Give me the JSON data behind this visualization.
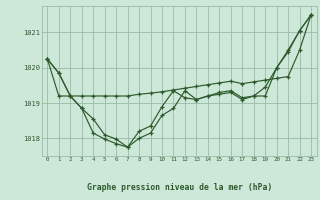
{
  "xlabel": "Graphe pression niveau de la mer (hPa)",
  "background_color": "#cde8d8",
  "plot_bg_color": "#cde8d8",
  "grid_color": "#99bbaa",
  "line_color": "#2d5a2d",
  "text_color": "#2d5a2d",
  "x": [
    0,
    1,
    2,
    3,
    4,
    5,
    6,
    7,
    8,
    9,
    10,
    11,
    12,
    13,
    14,
    15,
    16,
    17,
    18,
    19,
    20,
    21,
    22,
    23
  ],
  "series1": [
    1020.25,
    1019.85,
    1019.2,
    1018.85,
    1018.15,
    1017.98,
    1017.85,
    1017.75,
    1018.0,
    1018.15,
    1018.65,
    1018.85,
    1019.35,
    1019.1,
    1019.2,
    1019.25,
    1019.3,
    1019.1,
    1019.2,
    1019.45,
    1020.0,
    1020.45,
    1021.05,
    1021.5
  ],
  "series2": [
    1020.25,
    1019.85,
    1019.2,
    1019.2,
    1019.2,
    1019.2,
    1019.2,
    1019.2,
    1019.25,
    1019.28,
    1019.32,
    1019.37,
    1019.42,
    1019.47,
    1019.52,
    1019.57,
    1019.62,
    1019.55,
    1019.6,
    1019.65,
    1019.7,
    1019.75,
    1020.5,
    1021.5
  ],
  "series3": [
    1020.25,
    1019.2,
    1019.2,
    1018.85,
    1018.55,
    1018.1,
    1017.98,
    1017.75,
    1018.2,
    1018.35,
    1018.9,
    1019.35,
    1019.15,
    1019.1,
    1019.2,
    1019.3,
    1019.35,
    1019.15,
    1019.2,
    1019.2,
    1020.0,
    1020.5,
    1021.05,
    1021.5
  ],
  "ylim": [
    1017.5,
    1021.75
  ],
  "yticks": [
    1018,
    1019,
    1020,
    1021
  ],
  "xticks": [
    0,
    1,
    2,
    3,
    4,
    5,
    6,
    7,
    8,
    9,
    10,
    11,
    12,
    13,
    14,
    15,
    16,
    17,
    18,
    19,
    20,
    21,
    22,
    23
  ]
}
